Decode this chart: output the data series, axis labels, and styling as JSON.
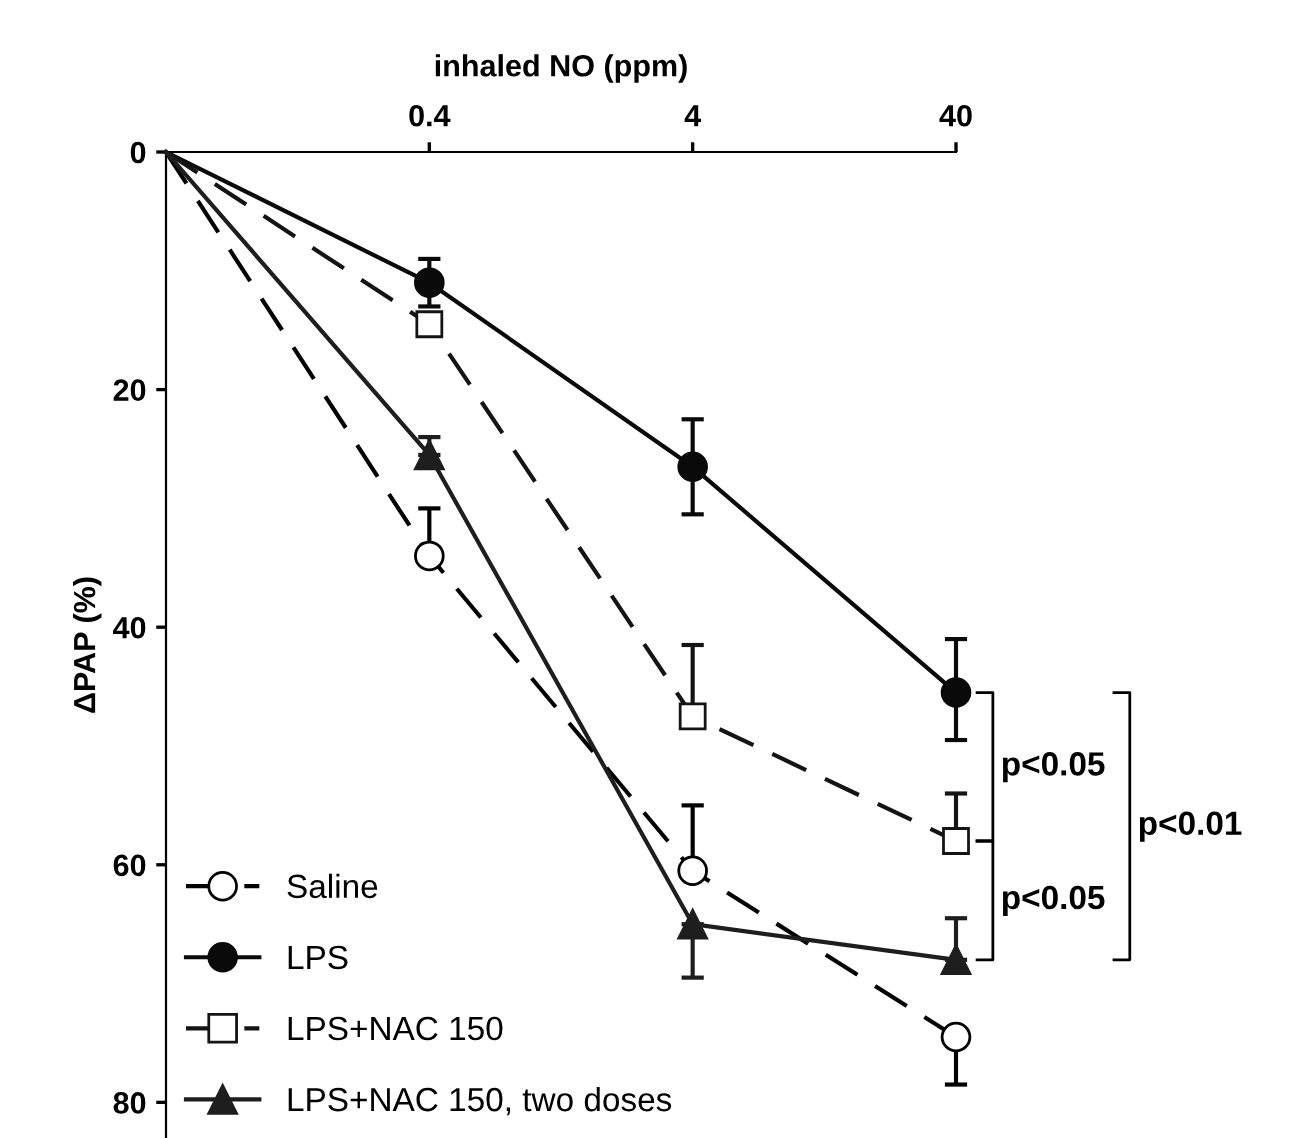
{
  "chart_data": {
    "type": "line",
    "xlabel": "inhaled NO (ppm)",
    "ylabel": "ΔPAP (%)",
    "categories": [
      null,
      "0.4",
      "4",
      "40"
    ],
    "ylim": [
      83,
      0
    ],
    "yticks": [
      0,
      20,
      40,
      60,
      80
    ],
    "grid": false,
    "legend": "bottom left",
    "series": [
      {
        "name": "Saline",
        "color": "#000000",
        "marker": "circle",
        "line_style": "dashed",
        "values": [
          0,
          34,
          60.5,
          74.5
        ],
        "errors": [
          null,
          [
            30,
            34
          ],
          [
            55,
            60.5
          ],
          [
            74.5,
            78.5
          ]
        ]
      },
      {
        "name": "LPS",
        "color": "#0a0a0a",
        "marker": "circle",
        "line_style": "solid",
        "values": [
          0,
          11,
          26.5,
          45.5
        ],
        "errors": [
          null,
          [
            9,
            13
          ],
          [
            22.5,
            30.5
          ],
          [
            41,
            49.5
          ]
        ]
      },
      {
        "name": "LPS+NAC 150",
        "color": "#141414",
        "marker": "square",
        "line_style": "dashed",
        "values": [
          0,
          14.5,
          47.5,
          58
        ],
        "errors": [
          null,
          null,
          [
            41.5,
            47.5
          ],
          [
            54,
            58
          ]
        ]
      },
      {
        "name": "LPS+NAC 150, two doses",
        "color": "#1e1e1e",
        "marker": "triangle",
        "line_style": "solid",
        "values": [
          0,
          25.5,
          65,
          68
        ],
        "errors": [
          null,
          [
            24,
            25.5
          ],
          [
            65,
            69.5
          ],
          [
            64.5,
            68
          ]
        ]
      }
    ],
    "annotations": [
      "p<0.05",
      "p<0.05",
      "p<0.01"
    ]
  }
}
